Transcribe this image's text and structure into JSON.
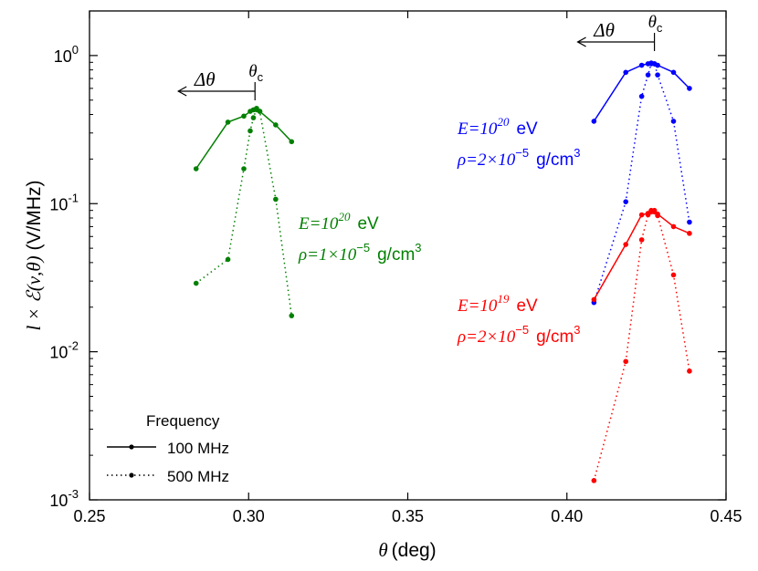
{
  "chart_data": {
    "type": "line",
    "yscale": "log",
    "xlabel": "(deg)",
    "xlabel_symbol": "θ",
    "ylabel_pre": "l × ",
    "ylabel_sym": "ℰ(ν,θ)",
    "ylabel_units": " (V/MHz)",
    "xlim": [
      0.25,
      0.45
    ],
    "ylim": [
      0.001,
      2.0
    ],
    "xticks": [
      0.25,
      0.3,
      0.35,
      0.4,
      0.45
    ],
    "xtick_labels": [
      "0.25",
      "0.30",
      "0.35",
      "0.40",
      "0.45"
    ],
    "yticks": [
      0.001,
      0.01,
      0.1,
      1
    ],
    "ytick_labels": [
      {
        "base": "10",
        "exp": "-3"
      },
      {
        "base": "10",
        "exp": "-2"
      },
      {
        "base": "10",
        "exp": "-1"
      },
      {
        "base": "10",
        "exp": "0"
      }
    ],
    "series": [
      {
        "name": "E=10^20 eV, rho=1e-5, 100 MHz",
        "color": "#008000",
        "linestyle": "solid",
        "x": [
          0.2835,
          0.2935,
          0.2985,
          0.3005,
          0.3015,
          0.3025,
          0.3035,
          0.3085,
          0.3135
        ],
        "y": [
          0.172,
          0.355,
          0.39,
          0.42,
          0.43,
          0.43,
          0.42,
          0.34,
          0.262
        ]
      },
      {
        "name": "E=10^20 eV, rho=1e-5, 500 MHz",
        "color": "#008000",
        "linestyle": "dotted",
        "x": [
          0.2835,
          0.2935,
          0.2985,
          0.3005,
          0.3015,
          0.3025,
          0.3035,
          0.3085,
          0.3135
        ],
        "y": [
          0.029,
          0.042,
          0.172,
          0.31,
          0.38,
          0.44,
          0.42,
          0.107,
          0.0175
        ]
      },
      {
        "name": "E=10^20 eV, rho=2e-5, 100 MHz",
        "color": "#0000ff",
        "linestyle": "solid",
        "x": [
          0.4085,
          0.4185,
          0.4235,
          0.4255,
          0.4265,
          0.4275,
          0.4285,
          0.4335,
          0.4385
        ],
        "y": [
          0.36,
          0.77,
          0.86,
          0.88,
          0.89,
          0.88,
          0.86,
          0.77,
          0.6
        ]
      },
      {
        "name": "E=10^20 eV, rho=2e-5, 500 MHz",
        "color": "#0000ff",
        "linestyle": "dotted",
        "x": [
          0.4085,
          0.4185,
          0.4235,
          0.4255,
          0.4265,
          0.4275,
          0.4285,
          0.4335,
          0.4385
        ],
        "y": [
          0.0215,
          0.103,
          0.53,
          0.74,
          0.88,
          0.88,
          0.74,
          0.36,
          0.075
        ]
      },
      {
        "name": "E=10^19 eV, rho=2e-5, 100 MHz",
        "color": "#ff0000",
        "linestyle": "solid",
        "x": [
          0.4085,
          0.4185,
          0.4235,
          0.4255,
          0.4265,
          0.4275,
          0.4285,
          0.4335,
          0.4385
        ],
        "y": [
          0.0225,
          0.053,
          0.084,
          0.086,
          0.088,
          0.088,
          0.085,
          0.07,
          0.063
        ]
      },
      {
        "name": "E=10^19 eV, rho=2e-5, 500 MHz",
        "color": "#ff0000",
        "linestyle": "dotted",
        "x": [
          0.4085,
          0.4185,
          0.4235,
          0.4255,
          0.4265,
          0.4275,
          0.4285,
          0.4335,
          0.4385
        ],
        "y": [
          0.00135,
          0.0086,
          0.057,
          0.084,
          0.09,
          0.09,
          0.083,
          0.033,
          0.0074
        ]
      }
    ],
    "annotations": [
      {
        "id": "green",
        "color": "#008000",
        "E_label": "E=10",
        "E_exp": "20",
        "E_unit": "eV",
        "rho_label": "ρ=1×10",
        "rho_exp": "−5",
        "rho_unit": "g/cm",
        "rho_unit_exp": "3"
      },
      {
        "id": "blue",
        "color": "#0000ff",
        "E_label": "E=10",
        "E_exp": "20",
        "E_unit": "eV",
        "rho_label": "ρ=2×10",
        "rho_exp": "−5",
        "rho_unit": "g/cm",
        "rho_unit_exp": "3"
      },
      {
        "id": "red",
        "color": "#ff0000",
        "E_label": "E=10",
        "E_exp": "19",
        "E_unit": "eV",
        "rho_label": "ρ=2×10",
        "rho_exp": "−5",
        "rho_unit": "g/cm",
        "rho_unit_exp": "3"
      }
    ],
    "cherenkov_markers": [
      {
        "theta_c": 0.302,
        "delta_label": "Δθ",
        "theta_c_label": "θ",
        "theta_c_sub": "c"
      },
      {
        "theta_c": 0.4275,
        "delta_label": "Δθ",
        "theta_c_label": "θ",
        "theta_c_sub": "c"
      }
    ],
    "legend": {
      "title": "Frequency",
      "position": "lower-left",
      "entries": [
        {
          "label": "100 MHz",
          "linestyle": "solid"
        },
        {
          "label": "500 MHz",
          "linestyle": "dotted"
        }
      ]
    }
  }
}
